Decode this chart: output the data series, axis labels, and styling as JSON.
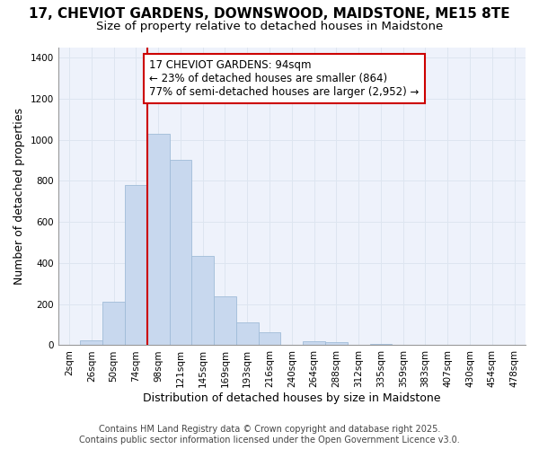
{
  "title": "17, CHEVIOT GARDENS, DOWNSWOOD, MAIDSTONE, ME15 8TE",
  "subtitle": "Size of property relative to detached houses in Maidstone",
  "xlabel": "Distribution of detached houses by size in Maidstone",
  "ylabel": "Number of detached properties",
  "categories": [
    "2sqm",
    "26sqm",
    "50sqm",
    "74sqm",
    "98sqm",
    "121sqm",
    "145sqm",
    "169sqm",
    "193sqm",
    "216sqm",
    "240sqm",
    "264sqm",
    "288sqm",
    "312sqm",
    "335sqm",
    "359sqm",
    "383sqm",
    "407sqm",
    "430sqm",
    "454sqm",
    "478sqm"
  ],
  "values": [
    0,
    25,
    210,
    780,
    1030,
    900,
    435,
    240,
    110,
    65,
    0,
    20,
    15,
    0,
    5,
    0,
    0,
    0,
    0,
    0,
    0
  ],
  "bar_color": "#c8d8ee",
  "bar_edge_color": "#a0bcd8",
  "grid_color": "#dde5f0",
  "background_color": "#ffffff",
  "plot_bg_color": "#eef2fb",
  "vline_x_index": 4,
  "vline_color": "#cc0000",
  "annotation_text": "17 CHEVIOT GARDENS: 94sqm\n← 23% of detached houses are smaller (864)\n77% of semi-detached houses are larger (2,952) →",
  "annotation_box_edge": "#cc0000",
  "annotation_box_fill": "#ffffff",
  "ylim": [
    0,
    1450
  ],
  "yticks": [
    0,
    200,
    400,
    600,
    800,
    1000,
    1200,
    1400
  ],
  "footer_line1": "Contains HM Land Registry data © Crown copyright and database right 2025.",
  "footer_line2": "Contains public sector information licensed under the Open Government Licence v3.0.",
  "title_fontsize": 11,
  "subtitle_fontsize": 9.5,
  "axis_label_fontsize": 9,
  "tick_fontsize": 7.5,
  "annotation_fontsize": 8.5,
  "footer_fontsize": 7
}
